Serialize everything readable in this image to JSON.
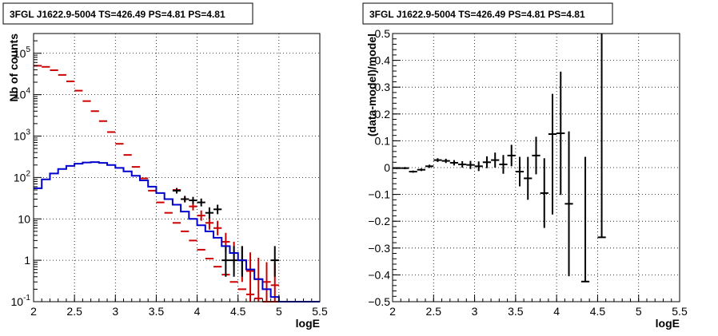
{
  "chart_data": [
    {
      "type": "scatter",
      "title": "3FGL J1622.9-5004 TS=426.49 PS=4.81 PS=4.81",
      "xlabel": "logE",
      "ylabel": "Nb of counts",
      "xlim": [
        2,
        5.5
      ],
      "ylim": [
        0.1,
        300000
      ],
      "log_y": true,
      "grid": true,
      "x_ticks": [
        "2",
        "2.5",
        "3",
        "3.5",
        "4",
        "4.5",
        "5",
        "5.5"
      ],
      "y_ticks": [
        {
          "value": 0.1,
          "base": "10",
          "exp": "-1"
        },
        {
          "value": 1,
          "base": "1",
          "exp": ""
        },
        {
          "value": 10,
          "base": "10",
          "exp": ""
        },
        {
          "value": 100,
          "base": "10",
          "exp": "2"
        },
        {
          "value": 1000,
          "base": "10",
          "exp": "3"
        },
        {
          "value": 10000,
          "base": "10",
          "exp": "4"
        },
        {
          "value": 100000,
          "base": "10",
          "exp": "5"
        }
      ],
      "series": [
        {
          "color": "#cc0000",
          "style": "errorbar",
          "x": [
            2.05,
            2.15,
            2.25,
            2.35,
            2.45,
            2.55,
            2.65,
            2.75,
            2.85,
            2.95,
            3.05,
            3.15,
            3.25,
            3.35,
            3.45,
            3.55,
            3.65,
            3.75,
            3.85,
            3.95,
            4.05,
            4.15,
            4.25,
            4.35,
            4.45,
            4.55,
            4.65,
            4.75,
            4.85,
            4.95,
            5.05
          ],
          "y": [
            50000,
            47000,
            39000,
            30000,
            21000,
            12500,
            7000,
            4000,
            2300,
            1250,
            650,
            350,
            180,
            95,
            48,
            25,
            14,
            8,
            5,
            3,
            1.8,
            1.1,
            0.7,
            0.45,
            0.3,
            0.2,
            0.15,
            0.12,
            0.1,
            0.1,
            0.1
          ],
          "y_err_low": [
            0,
            0,
            0,
            0,
            0,
            0,
            0,
            0,
            0,
            0,
            0,
            0,
            0,
            0,
            0,
            0,
            0,
            0,
            0,
            0,
            0,
            0,
            0,
            0,
            0,
            0,
            0,
            0,
            0,
            0,
            0
          ],
          "y_err_high": [
            0,
            0,
            0,
            0,
            0,
            0,
            0,
            0,
            0,
            0,
            0,
            0,
            0,
            0,
            0,
            0,
            0,
            0,
            0,
            0,
            0,
            0,
            0,
            0,
            0,
            0,
            0,
            0,
            0,
            0,
            0
          ]
        },
        {
          "color": "#cc0000",
          "style": "errorbar",
          "x": [
            3.75,
            3.85,
            3.95,
            4.05,
            4.15,
            4.25,
            4.35,
            4.45,
            4.55,
            4.65,
            4.75,
            4.85,
            4.95
          ],
          "y": [
            50,
            30,
            20,
            12,
            8,
            6,
            2.8,
            1.5,
            1.0,
            0.55,
            0.35,
            0.3,
            0.25
          ],
          "y_err_low": [
            5,
            4,
            4,
            3,
            2.5,
            2,
            1.2,
            0.8,
            0.7,
            0.45,
            0.25,
            0.2,
            0.15
          ],
          "y_err_high": [
            6,
            5,
            5,
            4,
            3,
            3,
            1.8,
            1.3,
            1.2,
            1.0,
            0.8,
            0.6,
            0.6
          ]
        },
        {
          "color": "#000000",
          "style": "errorbar",
          "x": [
            3.75,
            3.85,
            3.95,
            4.05,
            4.15,
            4.25,
            4.35,
            4.45,
            4.55,
            4.95
          ],
          "y": [
            48,
            30,
            28,
            25,
            14,
            17,
            1.0,
            1.0,
            1.0,
            1.0
          ],
          "y_err_low": [
            7,
            5,
            5,
            5,
            4,
            4,
            0.6,
            0.6,
            0.6,
            0.6
          ],
          "y_err_high": [
            7,
            6,
            6,
            6,
            5,
            5,
            1.2,
            1.2,
            1.2,
            1.2
          ]
        },
        {
          "color": "#0000cc",
          "style": "step",
          "bin_width": 0.1,
          "x": [
            2.05,
            2.15,
            2.25,
            2.35,
            2.45,
            2.55,
            2.65,
            2.75,
            2.85,
            2.95,
            3.05,
            3.15,
            3.25,
            3.35,
            3.45,
            3.55,
            3.65,
            3.75,
            3.85,
            3.95,
            4.05,
            4.15,
            4.25,
            4.35,
            4.45,
            4.55,
            4.65,
            4.75,
            4.85,
            4.95,
            5.05,
            5.15,
            5.25,
            5.35,
            5.45
          ],
          "y": [
            55,
            90,
            125,
            160,
            190,
            215,
            230,
            235,
            225,
            200,
            170,
            140,
            110,
            85,
            60,
            42,
            30,
            22,
            15,
            10,
            7,
            5,
            3.5,
            2.2,
            1.5,
            1.0,
            0.6,
            0.35,
            0.2,
            0.13,
            0.1,
            0.1,
            0.1,
            0.1,
            0.1
          ]
        }
      ]
    },
    {
      "type": "scatter",
      "title": "3FGL J1622.9-5004 TS=426.49 PS=4.81 PS=4.81",
      "xlabel": "logE",
      "ylabel": "(data-model)/model",
      "xlim": [
        2,
        5.5
      ],
      "ylim": [
        -0.5,
        0.5
      ],
      "grid": true,
      "x_ticks": [
        "2",
        "2.5",
        "3",
        "3.5",
        "4",
        "4.5",
        "5",
        "5.5"
      ],
      "y_ticks": [
        "0.5",
        "0.4",
        "0.3",
        "0.2",
        "0.1",
        "0",
        "−0.1",
        "−0.2",
        "−0.3",
        "−0.4",
        "−0.5"
      ],
      "series": [
        {
          "color": "#000000",
          "style": "errorbar",
          "x": [
            2.05,
            2.15,
            2.25,
            2.35,
            2.45,
            2.55,
            2.65,
            2.75,
            2.85,
            2.95,
            3.05,
            3.15,
            3.25,
            3.35,
            3.45,
            3.55,
            3.65,
            3.75,
            3.85,
            3.95,
            4.05,
            4.15,
            4.35,
            4.55
          ],
          "y": [
            -0.002,
            -0.002,
            -0.015,
            -0.008,
            0.005,
            0.028,
            0.025,
            0.018,
            0.012,
            0.01,
            0.005,
            0.02,
            0.028,
            0.012,
            0.045,
            -0.015,
            -0.04,
            0.045,
            -0.095,
            0.125,
            0.128,
            -0.135,
            -0.425,
            -0.26
          ],
          "y_err_low": [
            0.003,
            0.004,
            0.004,
            0.005,
            0.006,
            0.007,
            0.008,
            0.01,
            0.012,
            0.015,
            0.018,
            0.022,
            0.028,
            0.035,
            0.04,
            0.055,
            0.08,
            0.07,
            0.13,
            0.3,
            0.23,
            0.27,
            0.0,
            0.0
          ],
          "y_err_high": [
            0.003,
            0.004,
            0.004,
            0.005,
            0.006,
            0.007,
            0.008,
            0.01,
            0.012,
            0.015,
            0.018,
            0.022,
            0.028,
            0.035,
            0.04,
            0.055,
            0.08,
            0.07,
            0.13,
            0.15,
            0.23,
            0.27,
            0.465,
            0.8
          ]
        }
      ]
    }
  ]
}
